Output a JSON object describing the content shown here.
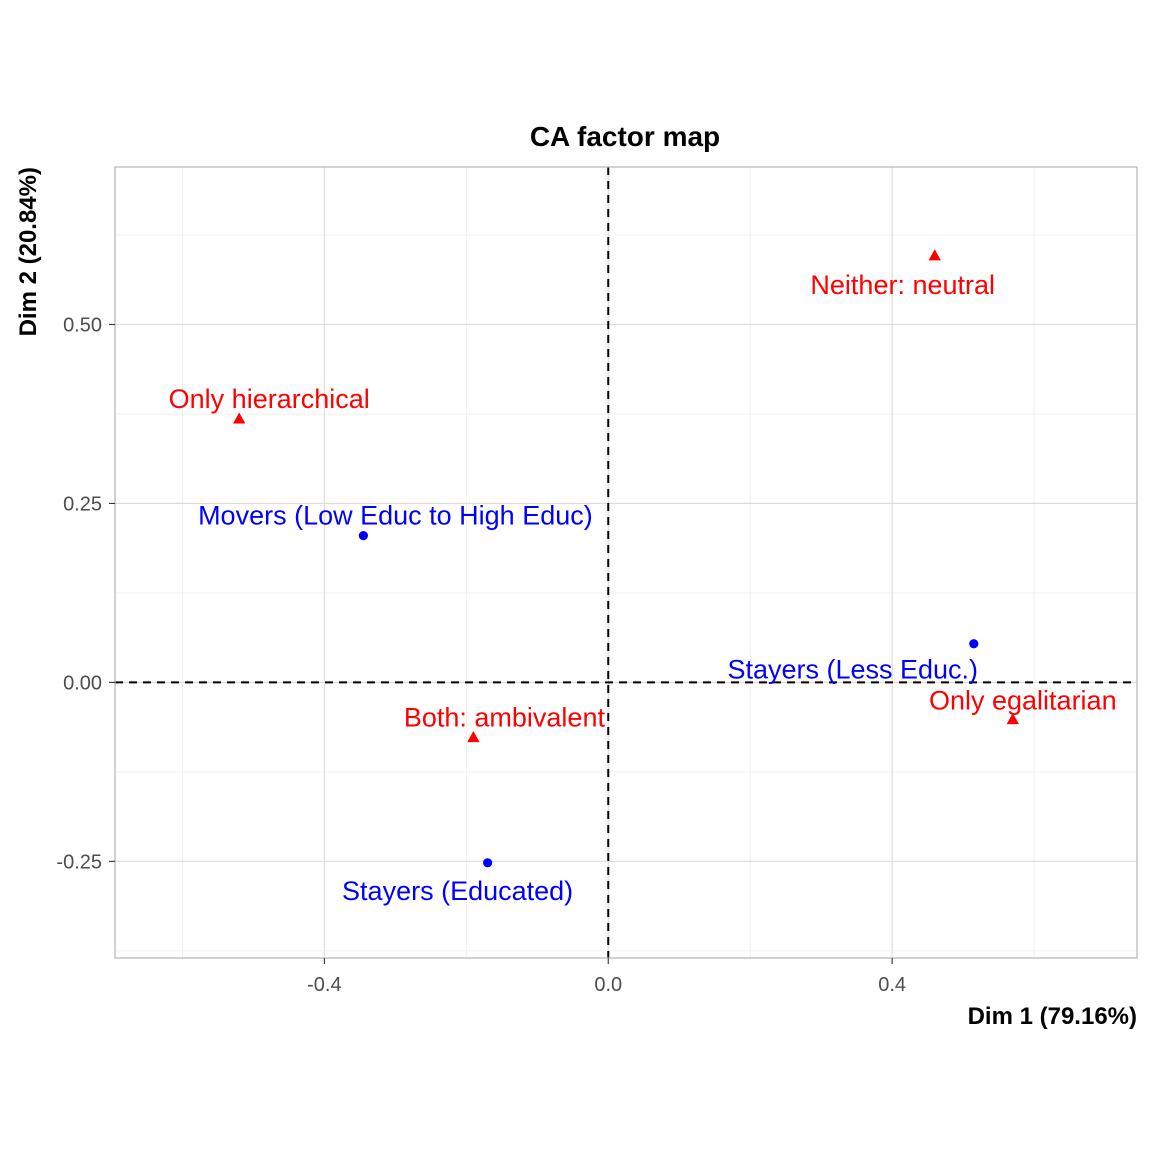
{
  "chart_data": {
    "type": "scatter",
    "title": "CA factor map",
    "xlabel": "Dim 1 (79.16%)",
    "ylabel": "Dim 2 (20.84%)",
    "xlim": [
      -0.695,
      0.745
    ],
    "ylim": [
      -0.385,
      0.72
    ],
    "x_ticks": [
      -0.4,
      0.0,
      0.4
    ],
    "x_tick_labels": [
      "-0.4",
      "0.0",
      "0.4"
    ],
    "y_ticks": [
      -0.25,
      0.0,
      0.25,
      0.5
    ],
    "y_tick_labels": [
      "-0.25",
      "0.00",
      "0.25",
      "0.50"
    ],
    "grid": true,
    "reference_lines": {
      "x": 0,
      "y": 0,
      "style": "dashed"
    },
    "colors": {
      "rows": "#0000ff",
      "columns": "#ff0000"
    },
    "series": [
      {
        "marker": "circle",
        "color": "#0000ff",
        "points": [
          {
            "label": "Movers (Low Educ to High Educ)",
            "x": -0.345,
            "y": 0.205
          },
          {
            "label": "Stayers (Less Educ.)",
            "x": 0.515,
            "y": 0.054
          },
          {
            "label": "Stayers (Educated)",
            "x": -0.17,
            "y": -0.252
          }
        ]
      },
      {
        "marker": "triangle",
        "color": "#ff0000",
        "points": [
          {
            "label": "Neither: neutral",
            "x": 0.46,
            "y": 0.596
          },
          {
            "label": "Only hierarchical",
            "x": -0.52,
            "y": 0.368
          },
          {
            "label": "Both: ambivalent",
            "x": -0.19,
            "y": -0.077
          },
          {
            "label": "Only egalitarian",
            "x": 0.57,
            "y": -0.052
          }
        ]
      }
    ]
  }
}
